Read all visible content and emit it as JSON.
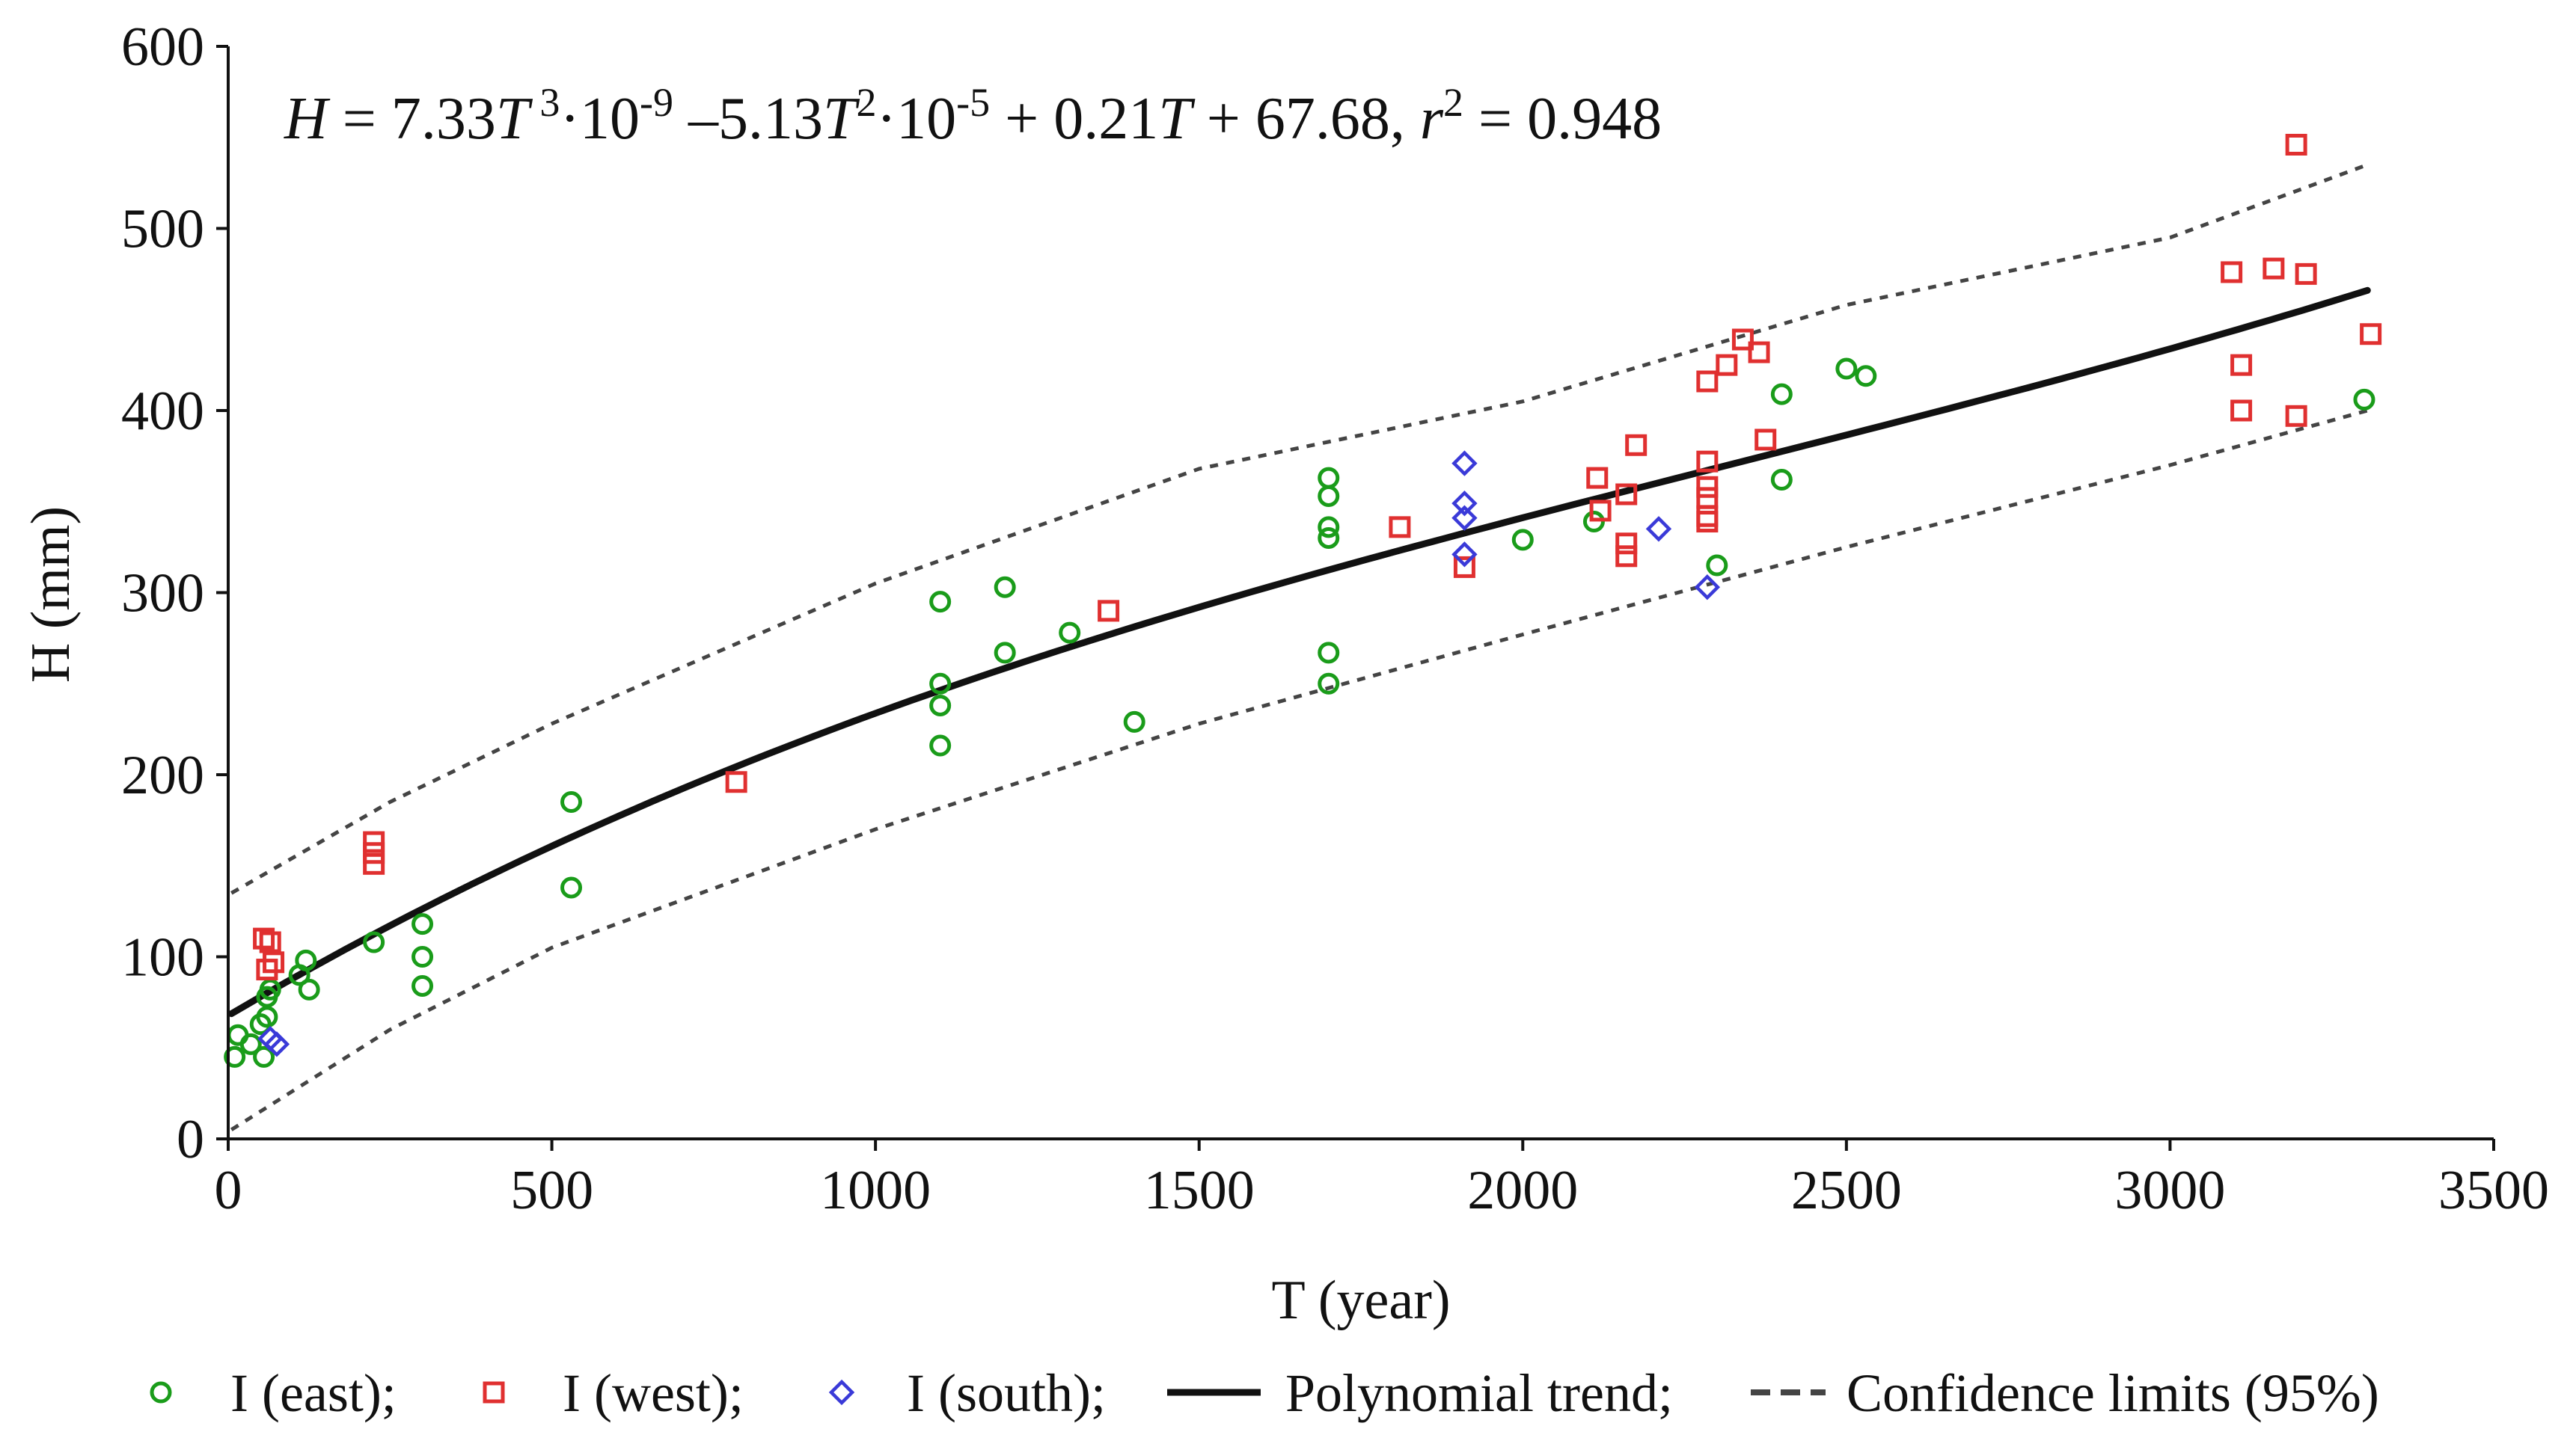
{
  "chart_data": {
    "type": "scatter",
    "title": "",
    "equation": {
      "parts": [
        "H",
        " = 7.33",
        "T",
        "3",
        "·10",
        "-9",
        " –5.13",
        "T",
        "2",
        "·10",
        "-5",
        " + 0.21",
        "T",
        " + 67.68, ",
        "r",
        "2",
        " = 0.948"
      ]
    },
    "xlabel": "T (year)",
    "ylabel": "H (mm)",
    "xlim": [
      0,
      3500
    ],
    "ylim": [
      0,
      600
    ],
    "xticks": [
      0,
      500,
      1000,
      1500,
      2000,
      2500,
      3000,
      3500
    ],
    "yticks": [
      0,
      100,
      200,
      300,
      400,
      500,
      600
    ],
    "grid": false,
    "legend_position": "bottom",
    "trend": {
      "name": "Polynomial trend",
      "a3": 7.33e-09,
      "a2": -5.13e-05,
      "a1": 0.21,
      "a0": 67.68,
      "x_range": [
        5,
        3305
      ],
      "color": "#111111"
    },
    "confidence": {
      "name": "Confidence limits (95%)",
      "upper": [
        [
          5,
          135
        ],
        [
          250,
          185
        ],
        [
          500,
          228
        ],
        [
          1000,
          305
        ],
        [
          1500,
          368
        ],
        [
          2000,
          405
        ],
        [
          2500,
          458
        ],
        [
          3000,
          495
        ],
        [
          3305,
          535
        ]
      ],
      "lower": [
        [
          5,
          5
        ],
        [
          250,
          60
        ],
        [
          500,
          105
        ],
        [
          1000,
          170
        ],
        [
          1500,
          228
        ],
        [
          2000,
          277
        ],
        [
          2500,
          325
        ],
        [
          3000,
          370
        ],
        [
          3305,
          400
        ]
      ],
      "color": "#444444"
    },
    "series": [
      {
        "name": "I (east)",
        "marker": "circle",
        "color": "#1a9c1a",
        "points": [
          [
            10,
            45
          ],
          [
            15,
            57
          ],
          [
            35,
            52
          ],
          [
            50,
            63
          ],
          [
            55,
            45
          ],
          [
            60,
            67
          ],
          [
            60,
            78
          ],
          [
            65,
            82
          ],
          [
            110,
            90
          ],
          [
            120,
            98
          ],
          [
            125,
            82
          ],
          [
            225,
            108
          ],
          [
            300,
            118
          ],
          [
            300,
            100
          ],
          [
            300,
            84
          ],
          [
            530,
            185
          ],
          [
            530,
            138
          ],
          [
            1100,
            295
          ],
          [
            1100,
            250
          ],
          [
            1100,
            238
          ],
          [
            1100,
            216
          ],
          [
            1200,
            303
          ],
          [
            1200,
            267
          ],
          [
            1300,
            278
          ],
          [
            1400,
            229
          ],
          [
            1700,
            363
          ],
          [
            1700,
            353
          ],
          [
            1700,
            336
          ],
          [
            1700,
            330
          ],
          [
            1700,
            267
          ],
          [
            1700,
            250
          ],
          [
            2000,
            329
          ],
          [
            2110,
            339
          ],
          [
            2300,
            315
          ],
          [
            2400,
            409
          ],
          [
            2400,
            362
          ],
          [
            2500,
            423
          ],
          [
            2530,
            419
          ],
          [
            3300,
            406
          ]
        ]
      },
      {
        "name": "I (west)",
        "marker": "square",
        "color": "#e03030",
        "points": [
          [
            55,
            110
          ],
          [
            60,
            93
          ],
          [
            65,
            108
          ],
          [
            70,
            97
          ],
          [
            225,
            163
          ],
          [
            225,
            157
          ],
          [
            225,
            151
          ],
          [
            785,
            196
          ],
          [
            1360,
            290
          ],
          [
            1810,
            336
          ],
          [
            1910,
            314
          ],
          [
            2115,
            363
          ],
          [
            2120,
            345
          ],
          [
            2160,
            354
          ],
          [
            2160,
            327
          ],
          [
            2160,
            320
          ],
          [
            2175,
            381
          ],
          [
            2285,
            416
          ],
          [
            2285,
            372
          ],
          [
            2285,
            358
          ],
          [
            2285,
            352
          ],
          [
            2285,
            342
          ],
          [
            2285,
            339
          ],
          [
            2315,
            425
          ],
          [
            2340,
            439
          ],
          [
            2365,
            432
          ],
          [
            2375,
            384
          ],
          [
            3095,
            476
          ],
          [
            3110,
            425
          ],
          [
            3110,
            400
          ],
          [
            3160,
            478
          ],
          [
            3195,
            546
          ],
          [
            3195,
            397
          ],
          [
            3210,
            475
          ],
          [
            3310,
            442
          ]
        ]
      },
      {
        "name": "I (south)",
        "marker": "diamond",
        "color": "#3a3ad8",
        "points": [
          [
            65,
            55
          ],
          [
            75,
            52
          ],
          [
            1910,
            371
          ],
          [
            1910,
            349
          ],
          [
            1910,
            341
          ],
          [
            1910,
            321
          ],
          [
            2210,
            335
          ],
          [
            2285,
            303
          ]
        ]
      }
    ],
    "legend": [
      {
        "label": "I (east);",
        "marker": "circle",
        "color": "#1a9c1a"
      },
      {
        "label": "I (west);",
        "marker": "square",
        "color": "#e03030"
      },
      {
        "label": "I (south);",
        "marker": "diamond",
        "color": "#3a3ad8"
      },
      {
        "label": "Polynomial trend;",
        "marker": "solid-line",
        "color": "#111111"
      },
      {
        "label": "Confidence limits (95%)",
        "marker": "dashed-line",
        "color": "#444444"
      }
    ]
  }
}
